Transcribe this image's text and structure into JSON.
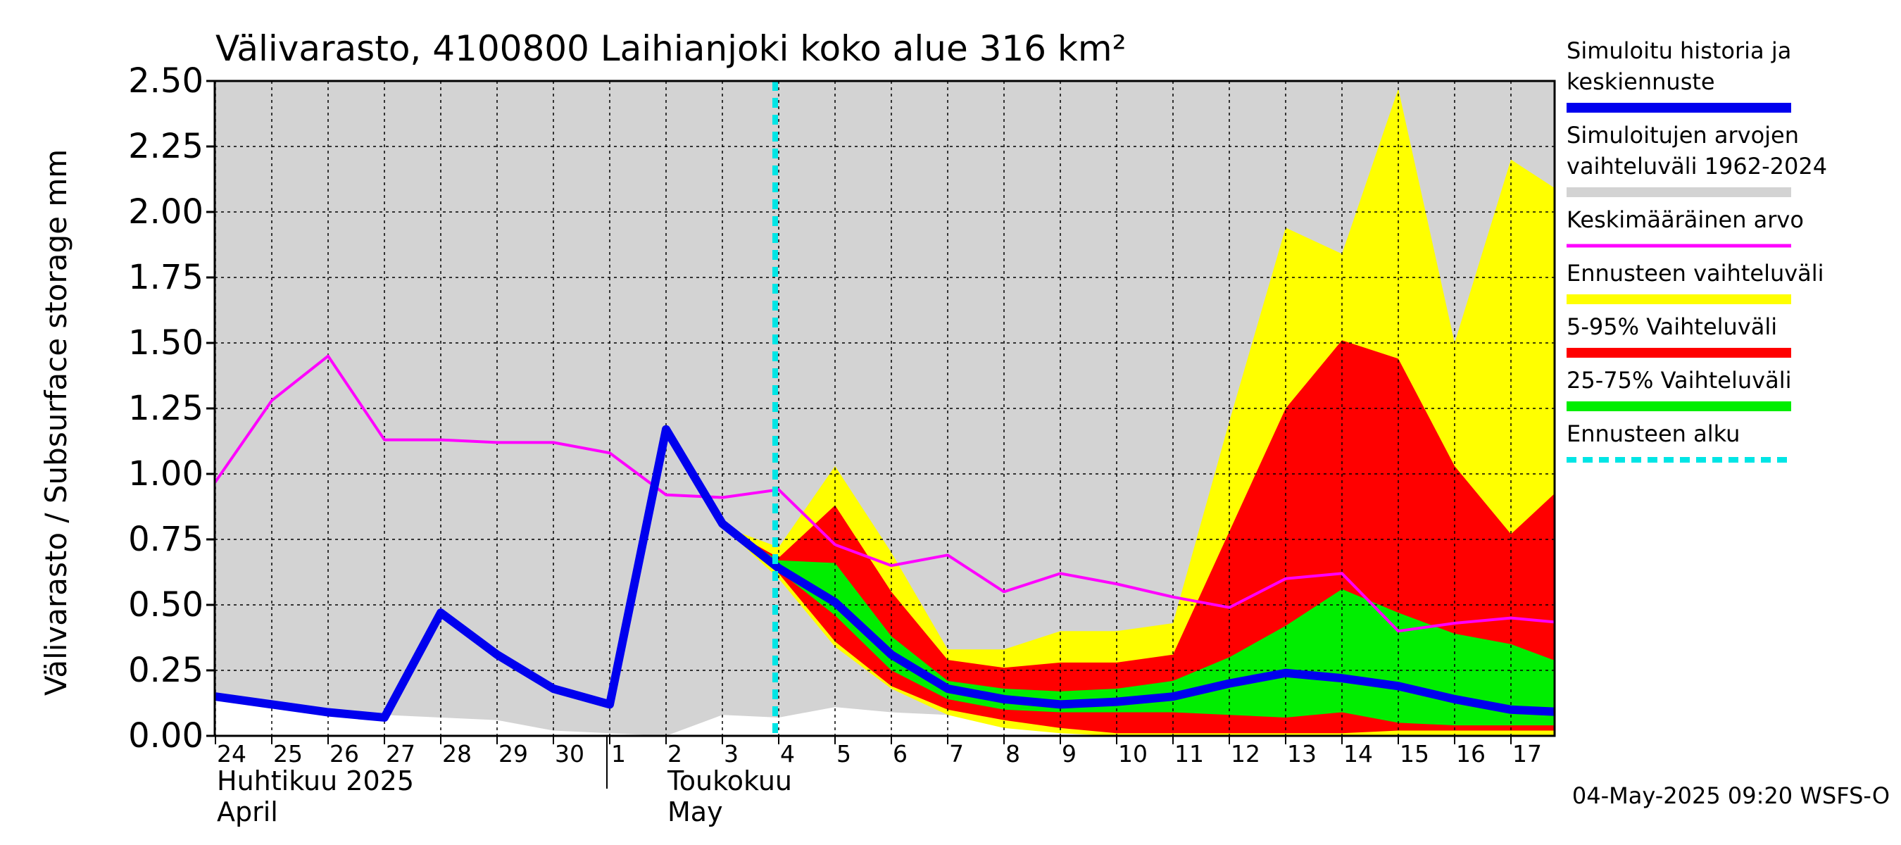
{
  "chart_data": {
    "type": "area",
    "title": "Välivarasto, 4100800 Laihianjoki koko alue 316 km²",
    "ylabel": "Välivarasto / Subsurface storage  mm",
    "ylim": [
      0,
      2.5
    ],
    "yticks": [
      "0.00",
      "0.25",
      "0.50",
      "0.75",
      "1.00",
      "1.25",
      "1.50",
      "1.75",
      "2.00",
      "2.25",
      "2.50"
    ],
    "grid": true,
    "x_start": "2025-04-24",
    "x_end": "2025-05-17",
    "day_labels": [
      {
        "x": "2025-04-24",
        "label": "24"
      },
      {
        "x": "2025-04-25",
        "label": "25"
      },
      {
        "x": "2025-04-26",
        "label": "26"
      },
      {
        "x": "2025-04-27",
        "label": "27"
      },
      {
        "x": "2025-04-28",
        "label": "28"
      },
      {
        "x": "2025-04-29",
        "label": "29"
      },
      {
        "x": "2025-04-30",
        "label": "30"
      },
      {
        "x": "2025-05-01",
        "label": "1"
      },
      {
        "x": "2025-05-02",
        "label": "2"
      },
      {
        "x": "2025-05-03",
        "label": "3"
      },
      {
        "x": "2025-05-04",
        "label": "4"
      },
      {
        "x": "2025-05-05",
        "label": "5"
      },
      {
        "x": "2025-05-06",
        "label": "6"
      },
      {
        "x": "2025-05-07",
        "label": "7"
      },
      {
        "x": "2025-05-08",
        "label": "8"
      },
      {
        "x": "2025-05-09",
        "label": "9"
      },
      {
        "x": "2025-05-10",
        "label": "10"
      },
      {
        "x": "2025-05-11",
        "label": "11"
      },
      {
        "x": "2025-05-12",
        "label": "12"
      },
      {
        "x": "2025-05-13",
        "label": "13"
      },
      {
        "x": "2025-05-14",
        "label": "14"
      },
      {
        "x": "2025-05-15",
        "label": "15"
      },
      {
        "x": "2025-05-16",
        "label": "16"
      },
      {
        "x": "2025-05-17",
        "label": "17"
      }
    ],
    "month_labels": [
      {
        "x": "2025-04-24",
        "line1": "Huhtikuu  2025",
        "line2": "April"
      },
      {
        "x": "2025-05-02",
        "line1": "Toukokuu",
        "line2": "May"
      }
    ],
    "month_divider": "2025-05-01",
    "forecast_start": "2025-05-04",
    "bands": [
      {
        "name": "Simuloitujen arvojen vaihteluväli 1962-2024",
        "color": "#d3d3d3",
        "x": [
          "2025-04-24",
          "2025-04-25",
          "2025-04-26",
          "2025-04-27",
          "2025-04-28",
          "2025-04-29",
          "2025-04-30",
          "2025-05-01",
          "2025-05-02",
          "2025-05-03",
          "2025-05-04",
          "2025-05-05",
          "2025-05-06",
          "2025-05-07",
          "2025-05-08",
          "2025-05-09",
          "2025-05-10",
          "2025-05-11",
          "2025-05-12",
          "2025-05-13",
          "2025-05-14",
          "2025-05-15",
          "2025-05-16",
          "2025-05-17",
          "2025-05-18"
        ],
        "lower": [
          0.14,
          0.11,
          0.09,
          0.08,
          0.07,
          0.06,
          0.02,
          0.01,
          0.0,
          0.08,
          0.07,
          0.11,
          0.09,
          0.08,
          0.11,
          0.04,
          0.0,
          0.0,
          0.0,
          0.0,
          0.0,
          0.0,
          0.0,
          0.0,
          0.0
        ],
        "upper": [
          2.5,
          2.5,
          2.5,
          2.5,
          2.5,
          2.5,
          2.5,
          2.5,
          2.5,
          2.5,
          2.5,
          2.5,
          2.5,
          2.5,
          2.5,
          2.5,
          2.5,
          2.5,
          2.5,
          2.5,
          2.5,
          2.5,
          2.5,
          2.5,
          2.5
        ]
      },
      {
        "name": "Ennusteen vaihteluväli",
        "color": "#ffff00",
        "x": [
          "2025-05-03",
          "2025-05-04",
          "2025-05-05",
          "2025-05-06",
          "2025-05-07",
          "2025-05-08",
          "2025-05-09",
          "2025-05-10",
          "2025-05-11",
          "2025-05-12",
          "2025-05-13",
          "2025-05-14",
          "2025-05-15",
          "2025-05-16",
          "2025-05-17",
          "2025-05-18"
        ],
        "lower": [
          0.8,
          0.6,
          0.34,
          0.18,
          0.08,
          0.03,
          0.01,
          0.0,
          0.0,
          0.0,
          0.0,
          0.0,
          0.0,
          0.0,
          0.0,
          0.0
        ],
        "upper": [
          0.8,
          0.72,
          1.03,
          0.7,
          0.33,
          0.33,
          0.4,
          0.4,
          0.43,
          1.2,
          1.94,
          1.84,
          2.47,
          1.5,
          2.2,
          2.06
        ]
      },
      {
        "name": "5-95% Vaihteluväli",
        "color": "#ff0000",
        "x": [
          "2025-05-03",
          "2025-05-04",
          "2025-05-05",
          "2025-05-06",
          "2025-05-07",
          "2025-05-08",
          "2025-05-09",
          "2025-05-10",
          "2025-05-11",
          "2025-05-12",
          "2025-05-13",
          "2025-05-14",
          "2025-05-15",
          "2025-05-16",
          "2025-05-17",
          "2025-05-18"
        ],
        "lower": [
          0.8,
          0.62,
          0.36,
          0.19,
          0.1,
          0.06,
          0.03,
          0.01,
          0.01,
          0.01,
          0.01,
          0.01,
          0.02,
          0.02,
          0.02,
          0.02
        ],
        "upper": [
          0.8,
          0.68,
          0.88,
          0.55,
          0.29,
          0.26,
          0.28,
          0.28,
          0.31,
          0.78,
          1.25,
          1.51,
          1.44,
          1.03,
          0.77,
          0.97
        ]
      },
      {
        "name": "25-75% Vaihteluväli",
        "color": "#00ee00",
        "x": [
          "2025-05-03",
          "2025-05-04",
          "2025-05-05",
          "2025-05-06",
          "2025-05-07",
          "2025-05-08",
          "2025-05-09",
          "2025-05-10",
          "2025-05-11",
          "2025-05-12",
          "2025-05-13",
          "2025-05-14",
          "2025-05-15",
          "2025-05-16",
          "2025-05-17",
          "2025-05-18"
        ],
        "lower": [
          0.8,
          0.63,
          0.46,
          0.25,
          0.14,
          0.1,
          0.09,
          0.09,
          0.09,
          0.08,
          0.07,
          0.09,
          0.05,
          0.04,
          0.04,
          0.04
        ],
        "upper": [
          0.8,
          0.67,
          0.66,
          0.38,
          0.21,
          0.18,
          0.17,
          0.18,
          0.21,
          0.3,
          0.42,
          0.56,
          0.47,
          0.39,
          0.35,
          0.27
        ]
      }
    ],
    "series": [
      {
        "name": "Keskimääräinen arvo",
        "color": "#ff00ff",
        "x": [
          "2025-04-24",
          "2025-04-25",
          "2025-04-26",
          "2025-04-27",
          "2025-04-28",
          "2025-04-29",
          "2025-04-30",
          "2025-05-01",
          "2025-05-02",
          "2025-05-03",
          "2025-05-04",
          "2025-05-05",
          "2025-05-06",
          "2025-05-07",
          "2025-05-08",
          "2025-05-09",
          "2025-05-10",
          "2025-05-11",
          "2025-05-12",
          "2025-05-13",
          "2025-05-14",
          "2025-05-15",
          "2025-05-16",
          "2025-05-17",
          "2025-05-18"
        ],
        "values": [
          0.97,
          1.28,
          1.45,
          1.13,
          1.13,
          1.12,
          1.12,
          1.08,
          0.92,
          0.91,
          0.94,
          0.73,
          0.65,
          0.69,
          0.55,
          0.62,
          0.58,
          0.53,
          0.49,
          0.6,
          0.62,
          0.4,
          0.43,
          0.45,
          0.43
        ]
      },
      {
        "name": "Simuloitu historia ja keskiennuste",
        "color": "#0000ee",
        "x": [
          "2025-04-24",
          "2025-04-25",
          "2025-04-26",
          "2025-04-27",
          "2025-04-28",
          "2025-04-29",
          "2025-04-30",
          "2025-05-01",
          "2025-05-02",
          "2025-05-03",
          "2025-05-04",
          "2025-05-05",
          "2025-05-06",
          "2025-05-07",
          "2025-05-08",
          "2025-05-09",
          "2025-05-10",
          "2025-05-11",
          "2025-05-12",
          "2025-05-13",
          "2025-05-14",
          "2025-05-15",
          "2025-05-16",
          "2025-05-17",
          "2025-05-18"
        ],
        "values": [
          0.15,
          0.12,
          0.09,
          0.07,
          0.47,
          0.31,
          0.18,
          0.12,
          1.17,
          0.81,
          0.64,
          0.51,
          0.31,
          0.18,
          0.14,
          0.12,
          0.13,
          0.15,
          0.2,
          0.24,
          0.22,
          0.19,
          0.14,
          0.1,
          0.09
        ]
      }
    ],
    "legend": {
      "placement": "right",
      "entries": [
        {
          "label_lines": [
            "Simuloitu historia ja",
            "keskiennuste"
          ],
          "color": "#0000ee",
          "style": "thick"
        },
        {
          "label_lines": [
            "Simuloitujen arvojen",
            "vaihteluväli 1962-2024"
          ],
          "color": "#d3d3d3",
          "style": "thick"
        },
        {
          "label_lines": [
            "Keskimääräinen arvo"
          ],
          "color": "#ff00ff",
          "style": "thin"
        },
        {
          "label_lines": [
            "Ennusteen vaihteluväli"
          ],
          "color": "#ffff00",
          "style": "thick"
        },
        {
          "label_lines": [
            "5-95% Vaihteluväli"
          ],
          "color": "#ff0000",
          "style": "thick"
        },
        {
          "label_lines": [
            "25-75% Vaihteluväli"
          ],
          "color": "#00ee00",
          "style": "thick"
        },
        {
          "label_lines": [
            "Ennusteen alku"
          ],
          "color": "#00e5e5",
          "style": "dashed"
        }
      ]
    },
    "footer": "04-May-2025 09:20 WSFS-O"
  }
}
